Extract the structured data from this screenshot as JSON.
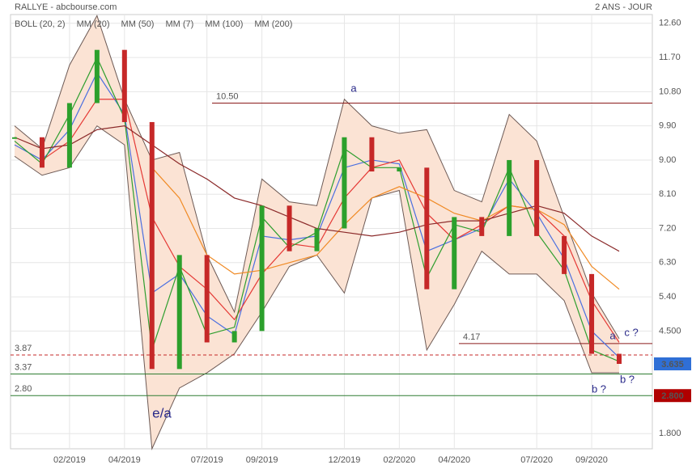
{
  "chart_data": {
    "type": "candlestick",
    "title": "RALLYE - abcbourse.com",
    "subtitle": "2 ANS - JOUR",
    "categories": [
      null,
      null,
      "02/2019",
      null,
      "04/2019",
      null,
      null,
      "07/2019",
      null,
      "09/2019",
      null,
      null,
      "12/2019",
      null,
      "02/2020",
      null,
      "04/2020",
      null,
      null,
      "07/2020",
      null,
      "09/2020",
      null
    ],
    "values": [
      9.6,
      8.8,
      10.5,
      11.9,
      10.0,
      3.5,
      6.5,
      4.2,
      4.5,
      7.8,
      6.6,
      7.2,
      9.6,
      8.7,
      8.8,
      5.6,
      7.5,
      7.0,
      9.0,
      7.0,
      6.0,
      3.9,
      3.635
    ],
    "up_color": "#2ca02c",
    "down_color": "#c62828",
    "band": {
      "name": "BOLL (20, 2)",
      "color": "#6d5a55",
      "fill": "#fbe3d4",
      "upper": [
        9.9,
        9.3,
        11.5,
        12.8,
        10.6,
        9.0,
        9.2,
        6.5,
        5.0,
        8.5,
        7.9,
        7.8,
        10.6,
        9.9,
        9.7,
        9.8,
        8.2,
        7.9,
        10.2,
        9.5,
        7.5,
        5.5,
        4.3
      ],
      "lower": [
        9.1,
        8.6,
        8.8,
        9.9,
        9.4,
        1.4,
        3.0,
        3.4,
        3.9,
        5.0,
        6.2,
        6.5,
        5.5,
        8.0,
        8.2,
        4.0,
        5.2,
        6.6,
        6.0,
        6.0,
        5.3,
        3.4,
        3.4
      ]
    },
    "series": [
      {
        "name": "MM (20)",
        "color": "#4a6fe0",
        "values": [
          9.4,
          9.0,
          9.8,
          11.3,
          10.2,
          5.5,
          6.0,
          4.9,
          4.4,
          7.0,
          6.9,
          7.0,
          8.8,
          9.0,
          8.9,
          6.6,
          6.9,
          7.2,
          8.5,
          7.6,
          6.4,
          4.5,
          3.8
        ]
      },
      {
        "name": "MM (50)",
        "color": "#e53935",
        "values": [
          null,
          9.0,
          9.5,
          10.6,
          10.6,
          7.5,
          6.2,
          5.6,
          4.8,
          6.0,
          6.8,
          6.7,
          8.0,
          8.8,
          9.0,
          7.6,
          6.9,
          7.3,
          7.8,
          7.7,
          7.0,
          5.3,
          4.2
        ]
      },
      {
        "name": "MM (7)",
        "color": "#2e9e2e",
        "values": [
          9.5,
          8.9,
          10.2,
          11.7,
          10.1,
          4.0,
          6.2,
          4.4,
          4.6,
          7.5,
          6.7,
          7.1,
          9.3,
          8.8,
          8.8,
          5.9,
          7.3,
          7.1,
          8.8,
          7.1,
          6.1,
          4.0,
          3.7
        ]
      },
      {
        "name": "MM (100)",
        "color": "#f08a24",
        "values": [
          null,
          null,
          null,
          null,
          null,
          8.8,
          8.0,
          6.5,
          6.0,
          6.1,
          6.3,
          6.5,
          7.3,
          8.0,
          8.3,
          8.0,
          7.6,
          7.4,
          7.8,
          7.7,
          7.3,
          6.2,
          5.6
        ]
      },
      {
        "name": "MM (200)",
        "color": "#8b2a2a",
        "values": [
          9.6,
          9.3,
          9.4,
          9.8,
          9.9,
          9.4,
          8.9,
          8.5,
          8.0,
          7.8,
          7.5,
          7.2,
          7.1,
          7.0,
          7.1,
          7.3,
          7.4,
          7.4,
          7.6,
          7.8,
          7.6,
          7.0,
          6.6
        ]
      }
    ],
    "ylim": [
      1.4,
      12.83
    ],
    "yticks": [
      {
        "value": 12.6,
        "label": "12.60"
      },
      {
        "value": 11.7,
        "label": "11.70"
      },
      {
        "value": 10.8,
        "label": "10.80"
      },
      {
        "value": 9.9,
        "label": "9.90"
      },
      {
        "value": 9,
        "label": "9.00"
      },
      {
        "value": 8.1,
        "label": "8.10"
      },
      {
        "value": 7.2,
        "label": "7.20"
      },
      {
        "value": 6.3,
        "label": "6.30"
      },
      {
        "value": 5.4,
        "label": "5.40"
      },
      {
        "value": 4.5,
        "label": "4.500"
      },
      {
        "value": 1.8,
        "label": "1.800"
      }
    ],
    "grid": true,
    "levels": [
      {
        "value": 10.5,
        "label": "10.50",
        "color": "#8b1a1a",
        "dashed": false
      },
      {
        "value": 4.17,
        "label": "4.17",
        "color": "#8b1a1a",
        "dashed": false
      },
      {
        "value": 3.87,
        "label": "3.87",
        "color": "#c62828",
        "dashed": true
      },
      {
        "value": 3.37,
        "label": "3.37",
        "color": "#2e7d32",
        "dashed": false
      },
      {
        "value": 2.8,
        "label": "2.80",
        "color": "#2e7d32",
        "dashed": false
      }
    ],
    "badges": [
      {
        "value": 3.635,
        "label": "3.635",
        "color": "#2f6fd6"
      },
      {
        "value": 2.8,
        "label": "2.800",
        "color": "#b00000"
      }
    ],
    "annotations": [
      "a",
      "e/a",
      "a",
      "c ?",
      "b ?",
      "b ?"
    ]
  }
}
